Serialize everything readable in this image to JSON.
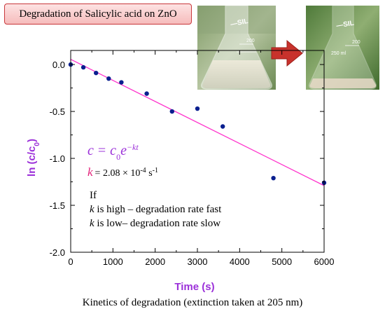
{
  "title": "Degradation of Salicylic acid on ZnO",
  "caption": "Kinetics of degradation (extinction taken at 205 nm)",
  "photos": {
    "before": {
      "flask_text": "—SIL",
      "volume_mark": "200"
    },
    "after": {
      "flask_text": "—SIL",
      "volume_label": "250 ml",
      "volume_mark": "200"
    }
  },
  "equation": {
    "lhs": "c",
    "equals": "=",
    "rhs_base": "c",
    "rhs_sub": "0",
    "rhs_e": "e",
    "rhs_exp": "−kt"
  },
  "rate": {
    "symbol": "k",
    "value_text": "= 2.08 × 10",
    "exp_text": "-4",
    "unit_text": " s",
    "unit_exp": "-1"
  },
  "notes": {
    "line1": "If",
    "line2_k": "k",
    "line2_rest": " is high – degradation rate fast",
    "line3_k": "k",
    "line3_rest": " is low– degradation rate slow"
  },
  "colors": {
    "accent": "#9b30d9",
    "fit_line": "#ff33cc",
    "points": "#0a1f8f",
    "arrow": "#c8322c",
    "title_border": "#c9373a"
  },
  "chart_data": {
    "type": "scatter",
    "xlabel": "Time (s)",
    "ylabel_base": "ln (c/c",
    "ylabel_sub": "0",
    "ylabel_close": ")",
    "xlim": [
      0,
      6000
    ],
    "ylim": [
      -2.0,
      0.15
    ],
    "x_ticks": [
      0,
      1000,
      2000,
      3000,
      4000,
      5000,
      6000
    ],
    "y_ticks": [
      "0.0",
      "-0.5",
      "-1.0",
      "-1.5",
      "-2.0"
    ],
    "y_tick_values": [
      0,
      -0.5,
      -1.0,
      -1.5,
      -2.0
    ],
    "points": {
      "x": [
        0,
        300,
        600,
        900,
        1200,
        1800,
        2400,
        3000,
        3600,
        4800,
        6000
      ],
      "y": [
        0,
        -0.03,
        -0.09,
        -0.15,
        -0.19,
        -0.31,
        -0.5,
        -0.47,
        -0.66,
        -1.21,
        -1.26
      ]
    },
    "fit": {
      "x": [
        0,
        6000
      ],
      "y": [
        0.055,
        -1.29
      ]
    }
  }
}
